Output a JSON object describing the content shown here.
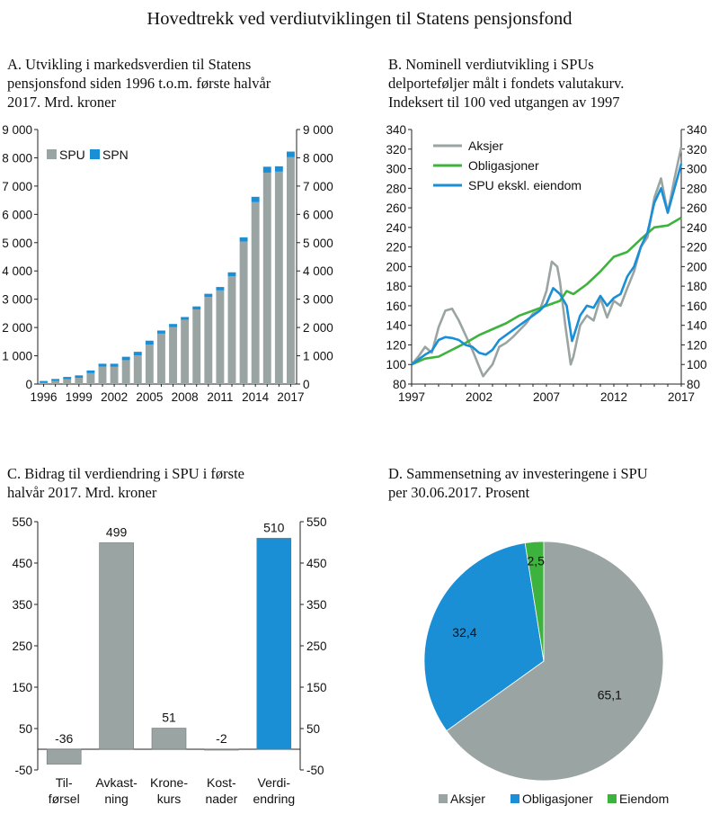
{
  "title": "Hovedtrekk ved verdiutviklingen til Statens pensjonsfond",
  "chart_data": [
    {
      "id": "A",
      "type": "bar",
      "stacked": true,
      "title_lines": [
        "A.  Utvikling i markedsverdien til Statens",
        "pensjonsfond siden 1996 t.o.m. første halvår",
        "2017. Mrd. kroner"
      ],
      "categories": [
        "1996",
        "1997",
        "1998",
        "1999",
        "2000",
        "2001",
        "2002",
        "2003",
        "2004",
        "2005",
        "2006",
        "2007",
        "2008",
        "2009",
        "2010",
        "2011",
        "2012",
        "2013",
        "2014",
        "2015",
        "2016",
        "2017"
      ],
      "xtick_labels": [
        "1996",
        "1999",
        "2002",
        "2005",
        "2008",
        "2011",
        "2014",
        "2017"
      ],
      "ylim": [
        0,
        9000
      ],
      "yticks": [
        "0",
        "1 000",
        "2 000",
        "3 000",
        "4 000",
        "5 000",
        "6 000",
        "7 000",
        "8 000",
        "9 000"
      ],
      "series": [
        {
          "name": "SPU",
          "color": "#9aa5a3",
          "values": [
            48,
            113,
            172,
            222,
            386,
            614,
            609,
            845,
            1016,
            1399,
            1783,
            2019,
            2275,
            2640,
            3077,
            3312,
            3816,
            5038,
            6431,
            7475,
            7510,
            8020
          ]
        },
        {
          "name": "SPN",
          "color": "#1a8fd6",
          "values": [
            60,
            67,
            80,
            85,
            95,
            105,
            110,
            120,
            125,
            135,
            110,
            105,
            95,
            105,
            115,
            120,
            135,
            150,
            190,
            210,
            190,
            200
          ]
        }
      ]
    },
    {
      "id": "B",
      "type": "line",
      "title_lines": [
        "B.  Nominell verdiutvikling i SPUs",
        "delporteføljer målt i fondets valutakurv.",
        "Indeksert til 100 ved utgangen av 1997"
      ],
      "xlim": [
        1997,
        2017
      ],
      "xtick_labels": [
        "1997",
        "2002",
        "2007",
        "2012",
        "2017"
      ],
      "ylim": [
        80,
        340
      ],
      "yticks": [
        "80",
        "100",
        "120",
        "140",
        "160",
        "180",
        "200",
        "220",
        "240",
        "260",
        "280",
        "300",
        "320",
        "340"
      ],
      "series": [
        {
          "name": "Aksjer",
          "color": "#9aa5a3",
          "x": [
            1997,
            1997.5,
            1998,
            1998.5,
            1999,
            1999.5,
            2000,
            2000.5,
            2001,
            2001.5,
            2002,
            2002.3,
            2002.7,
            2003,
            2003.5,
            2004,
            2004.5,
            2005,
            2005.5,
            2006,
            2006.5,
            2007,
            2007.4,
            2007.8,
            2008,
            2008.4,
            2008.8,
            2009,
            2009.5,
            2010,
            2010.5,
            2011,
            2011.5,
            2012,
            2012.5,
            2013,
            2013.5,
            2014,
            2014.5,
            2015,
            2015.5,
            2016,
            2016.5,
            2017
          ],
          "values": [
            100,
            108,
            118,
            112,
            138,
            155,
            157,
            145,
            130,
            115,
            98,
            88,
            95,
            100,
            118,
            122,
            128,
            135,
            142,
            152,
            155,
            175,
            205,
            200,
            185,
            140,
            100,
            108,
            140,
            150,
            145,
            168,
            148,
            165,
            160,
            178,
            195,
            220,
            230,
            270,
            290,
            255,
            290,
            322
          ]
        },
        {
          "name": "Obligasjoner",
          "color": "#3db33d",
          "x": [
            1997,
            1998,
            1999,
            2000,
            2001,
            2002,
            2003,
            2004,
            2005,
            2006,
            2007,
            2008,
            2008.5,
            2009,
            2010,
            2011,
            2012,
            2013,
            2014,
            2015,
            2016,
            2017
          ],
          "values": [
            100,
            106,
            108,
            115,
            122,
            130,
            136,
            142,
            150,
            155,
            160,
            165,
            175,
            172,
            182,
            195,
            210,
            215,
            228,
            240,
            242,
            250
          ]
        },
        {
          "name": "SPU ekskl. eiendom",
          "color": "#1a8fd6",
          "x": [
            1997,
            1998,
            1998.5,
            1999,
            1999.5,
            2000,
            2000.5,
            2001,
            2001.5,
            2002,
            2002.5,
            2003,
            2003.5,
            2004,
            2005,
            2005.5,
            2006,
            2006.5,
            2007,
            2007.5,
            2008,
            2008.5,
            2008.9,
            2009,
            2009.5,
            2010,
            2010.5,
            2011,
            2011.5,
            2012,
            2012.5,
            2013,
            2013.5,
            2014,
            2014.5,
            2015,
            2015.5,
            2016,
            2016.5,
            2017
          ],
          "values": [
            100,
            110,
            114,
            125,
            128,
            127,
            125,
            120,
            118,
            112,
            110,
            115,
            125,
            130,
            140,
            145,
            150,
            155,
            162,
            178,
            172,
            160,
            124,
            128,
            150,
            160,
            158,
            170,
            160,
            168,
            172,
            190,
            200,
            220,
            235,
            265,
            280,
            255,
            280,
            305
          ]
        }
      ]
    },
    {
      "id": "C",
      "type": "bar",
      "title_lines": [
        "C.  Bidrag til verdiendring i SPU i første",
        "halvår 2017. Mrd. kroner"
      ],
      "categories": [
        [
          "Til-",
          "førsel"
        ],
        [
          "Avkast-",
          "ning"
        ],
        [
          "Krone-",
          "kurs"
        ],
        [
          "Kost-",
          "nader"
        ],
        [
          "Verdi-",
          "endring"
        ]
      ],
      "values": [
        -36,
        499,
        51,
        -2,
        510
      ],
      "value_labels": [
        "-36",
        "499",
        "51",
        "-2",
        "510"
      ],
      "colors": [
        "#9aa5a3",
        "#9aa5a3",
        "#9aa5a3",
        "#9aa5a3",
        "#1a8fd6"
      ],
      "ylim": [
        -50,
        550
      ],
      "yticks": [
        "-50",
        "50",
        "150",
        "250",
        "350",
        "450",
        "550"
      ]
    },
    {
      "id": "D",
      "type": "pie",
      "title_lines": [
        "D.  Sammensetning av investeringene i SPU",
        "per 30.06.2017. Prosent"
      ],
      "labels": [
        "Aksjer",
        "Obligasjoner",
        "Eiendom"
      ],
      "values": [
        65.1,
        32.4,
        2.5
      ],
      "value_labels": [
        "65,1",
        "32,4",
        "2,5"
      ],
      "colors": [
        "#9aa5a3",
        "#1a8fd6",
        "#3db33d"
      ]
    }
  ]
}
